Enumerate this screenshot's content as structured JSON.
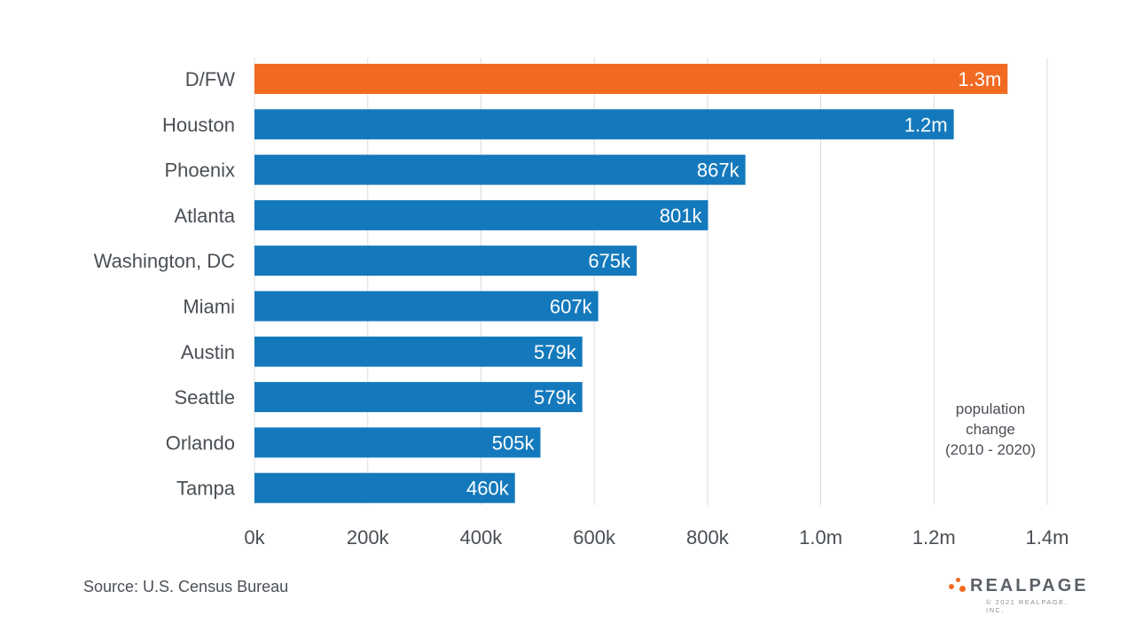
{
  "chart_data": {
    "type": "bar",
    "orientation": "horizontal",
    "categories": [
      "D/FW",
      "Houston",
      "Phoenix",
      "Atlanta",
      "Washington, DC",
      "Miami",
      "Austin",
      "Seattle",
      "Orlando",
      "Tampa"
    ],
    "values": [
      1330000,
      1235000,
      867000,
      801000,
      675000,
      607000,
      579000,
      579000,
      505000,
      460000
    ],
    "value_labels": [
      "1.3m",
      "1.2m",
      "867k",
      "801k",
      "675k",
      "607k",
      "579k",
      "579k",
      "505k",
      "460k"
    ],
    "xlim": [
      0,
      1400000
    ],
    "ticks": [
      0,
      200000,
      400000,
      600000,
      800000,
      1000000,
      1200000,
      1400000
    ],
    "tick_labels": [
      "0k",
      "200k",
      "400k",
      "600k",
      "800k",
      "1.0m",
      "1.2m",
      "1.4m"
    ],
    "grid": true,
    "highlight_index": 0,
    "colors": {
      "bar": "#1479bc",
      "highlight": "#f26a21",
      "grid": "#dcdcdc",
      "text": "#4a4f55"
    },
    "annotation": [
      "population",
      "change",
      "(2010 - 2020)"
    ]
  },
  "source": "Source: U.S. Census Bureau",
  "logo": {
    "name": "REALPAGE",
    "copyright": "© 2021 REALPAGE, INC."
  }
}
